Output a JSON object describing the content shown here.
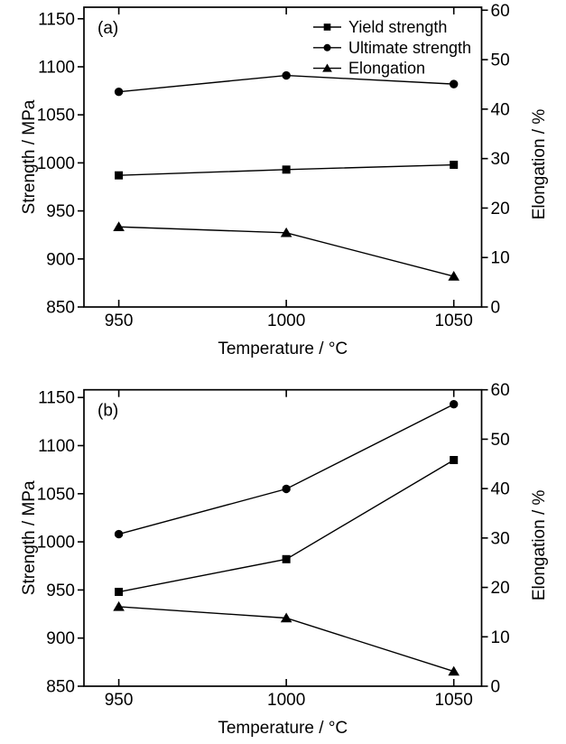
{
  "figure": {
    "background": "#ffffff",
    "ink": "#000000"
  },
  "chart_data": [
    {
      "type": "line",
      "panel_label": "(a)",
      "x_label": "Temperature / °C",
      "x": [
        950,
        1000,
        1050
      ],
      "x_axis": {
        "ticks": [
          950,
          1000,
          1050
        ],
        "range": [
          939.6,
          1058.3
        ]
      },
      "left_axis": {
        "label": "Strength / MPa",
        "ticks": [
          850,
          900,
          950,
          1000,
          1050,
          1100,
          1150
        ],
        "range": [
          850,
          1162
        ]
      },
      "right_axis": {
        "label": "Elongation / %",
        "ticks": [
          0,
          10,
          20,
          30,
          40,
          50,
          60
        ],
        "range": [
          0,
          60.6
        ]
      },
      "grid": false,
      "series": [
        {
          "name": "Yield strength",
          "marker": "square",
          "axis": "left",
          "values": [
            987,
            993,
            998
          ]
        },
        {
          "name": "Ultimate strength",
          "marker": "circle",
          "axis": "left",
          "values": [
            1074,
            1091,
            1082
          ]
        },
        {
          "name": "Elongation",
          "marker": "triangle",
          "axis": "right",
          "values": [
            16.2,
            15.0,
            6.2
          ]
        }
      ],
      "legend": {
        "visible": true,
        "position": "top-right",
        "entries": [
          "Yield strength",
          "Ultimate strength",
          "Elongation"
        ]
      }
    },
    {
      "type": "line",
      "panel_label": "(b)",
      "x_label": "Temperature / °C",
      "x": [
        950,
        1000,
        1050
      ],
      "x_axis": {
        "ticks": [
          950,
          1000,
          1050
        ],
        "range": [
          939.6,
          1058.3
        ]
      },
      "left_axis": {
        "label": "Strength / MPa",
        "ticks": [
          850,
          900,
          950,
          1000,
          1050,
          1100,
          1150
        ],
        "range": [
          850,
          1158
        ]
      },
      "right_axis": {
        "label": "Elongation / %",
        "ticks": [
          0,
          10,
          20,
          30,
          40,
          50,
          60
        ],
        "range": [
          0,
          60
        ]
      },
      "grid": false,
      "series": [
        {
          "name": "Yield strength",
          "marker": "square",
          "axis": "left",
          "values": [
            948,
            982,
            1085
          ]
        },
        {
          "name": "Ultimate strength",
          "marker": "circle",
          "axis": "left",
          "values": [
            1008,
            1055,
            1143
          ]
        },
        {
          "name": "Elongation",
          "marker": "triangle",
          "axis": "right",
          "values": [
            16.1,
            13.8,
            3.0
          ]
        }
      ],
      "legend": {
        "visible": false,
        "position": "top-right",
        "entries": []
      }
    }
  ]
}
